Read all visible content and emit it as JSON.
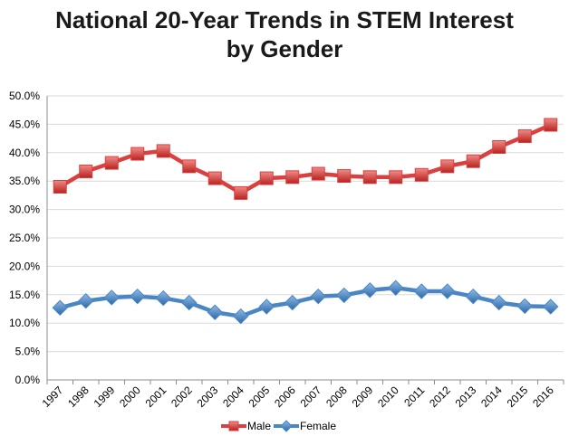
{
  "chart_data": {
    "type": "line",
    "title_lines": [
      "National 20-Year Trends in STEM Interest",
      "by Gender"
    ],
    "x": [
      "1997",
      "1998",
      "1999",
      "2000",
      "2001",
      "2002",
      "2003",
      "2004",
      "2005",
      "2006",
      "2007",
      "2008",
      "2009",
      "2010",
      "2011",
      "2012",
      "2013",
      "2014",
      "2015",
      "2016"
    ],
    "series": [
      {
        "name": "Male",
        "color": "#d9403f",
        "marker": "square",
        "values": [
          34.0,
          36.7,
          38.2,
          39.8,
          40.3,
          37.6,
          35.5,
          32.9,
          35.5,
          35.7,
          36.3,
          35.9,
          35.7,
          35.7,
          36.1,
          37.6,
          38.5,
          41.0,
          42.9,
          44.9
        ]
      },
      {
        "name": "Female",
        "color": "#4a86c5",
        "marker": "diamond",
        "values": [
          12.7,
          13.9,
          14.5,
          14.7,
          14.4,
          13.6,
          11.9,
          11.2,
          12.9,
          13.6,
          14.7,
          14.9,
          15.8,
          16.2,
          15.6,
          15.6,
          14.7,
          13.6,
          13.0,
          12.9
        ]
      }
    ],
    "yticks": [
      "0.0%",
      "5.0%",
      "10.0%",
      "15.0%",
      "20.0%",
      "25.0%",
      "30.0%",
      "35.0%",
      "40.0%",
      "45.0%",
      "50.0%"
    ],
    "ylim": [
      0,
      50
    ],
    "grid": true,
    "legend": "bottom-center",
    "xlabel": "",
    "ylabel": ""
  }
}
